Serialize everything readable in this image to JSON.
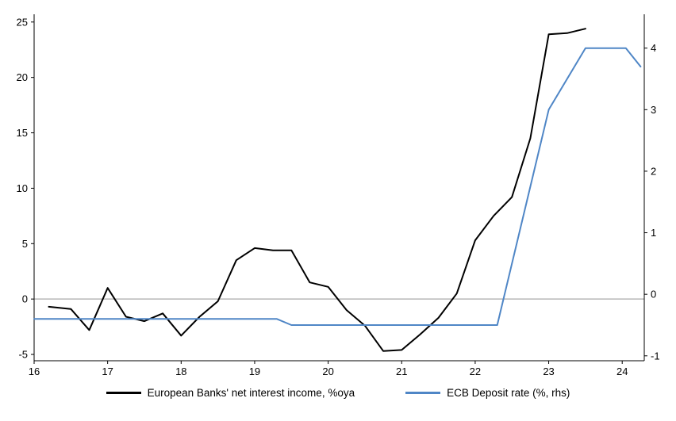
{
  "chart_data": {
    "type": "line",
    "title": "",
    "xlabel": "",
    "ylabel_left": "",
    "ylabel_right": "",
    "grid": false,
    "zero_line": true,
    "legend_position": "bottom",
    "x_ticks": [
      16,
      17,
      18,
      19,
      20,
      21,
      22,
      23,
      24
    ],
    "xlim": [
      16,
      24.3
    ],
    "left_axis": {
      "ticks": [
        -5,
        0,
        5,
        10,
        15,
        20,
        25
      ],
      "lim": [
        -5.57,
        25.7
      ]
    },
    "right_axis": {
      "ticks": [
        -1,
        0,
        1,
        2,
        3,
        4
      ],
      "lim": [
        -1.08,
        4.55
      ]
    },
    "series": [
      {
        "name": "European Banks' net interest income, %oya",
        "axis": "left",
        "color": "#000000",
        "width": 2,
        "points": [
          [
            16.2,
            -0.7
          ],
          [
            16.5,
            -0.9
          ],
          [
            16.75,
            -2.8
          ],
          [
            17.0,
            1.0
          ],
          [
            17.25,
            -1.6
          ],
          [
            17.5,
            -2.0
          ],
          [
            17.75,
            -1.3
          ],
          [
            18.0,
            -3.3
          ],
          [
            18.25,
            -1.6
          ],
          [
            18.5,
            -0.2
          ],
          [
            18.75,
            3.5
          ],
          [
            19.0,
            4.6
          ],
          [
            19.25,
            4.4
          ],
          [
            19.5,
            4.4
          ],
          [
            19.75,
            1.5
          ],
          [
            20.0,
            1.1
          ],
          [
            20.25,
            -1.0
          ],
          [
            20.5,
            -2.4
          ],
          [
            20.75,
            -4.7
          ],
          [
            21.0,
            -4.6
          ],
          [
            21.25,
            -3.2
          ],
          [
            21.5,
            -1.7
          ],
          [
            21.75,
            0.5
          ],
          [
            22.0,
            5.3
          ],
          [
            22.25,
            7.5
          ],
          [
            22.5,
            9.2
          ],
          [
            22.75,
            14.5
          ],
          [
            23.0,
            23.9
          ],
          [
            23.25,
            24.0
          ],
          [
            23.5,
            24.4
          ]
        ]
      },
      {
        "name": "ECB Deposit rate (%, rhs)",
        "axis": "right",
        "color": "#4f86c6",
        "width": 2,
        "points": [
          [
            16.0,
            -0.4
          ],
          [
            19.3,
            -0.4
          ],
          [
            19.5,
            -0.5
          ],
          [
            22.3,
            -0.5
          ],
          [
            23.0,
            3.0
          ],
          [
            23.5,
            4.0
          ],
          [
            24.05,
            4.0
          ],
          [
            24.25,
            3.7
          ]
        ]
      }
    ]
  },
  "legend": {
    "items": [
      {
        "label": "European Banks' net interest income, %oya"
      },
      {
        "label": "ECB Deposit rate (%, rhs)"
      }
    ]
  }
}
